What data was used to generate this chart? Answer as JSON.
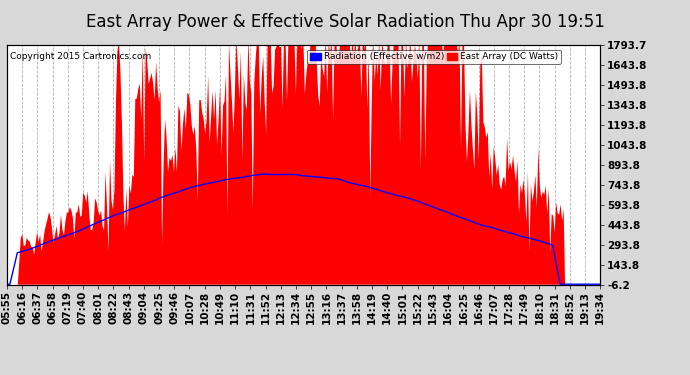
{
  "title": "East Array Power & Effective Solar Radiation Thu Apr 30 19:51",
  "copyright": "Copyright 2015 Cartronics.com",
  "legend_radiation": "Radiation (Effective w/m2)",
  "legend_array": "East Array (DC Watts)",
  "ylabel_right_ticks": [
    -6.2,
    143.8,
    293.8,
    443.8,
    593.8,
    743.8,
    893.8,
    1043.8,
    1193.8,
    1343.8,
    1493.8,
    1643.8,
    1793.7
  ],
  "ymin": -6.2,
  "ymax": 1793.7,
  "background_color": "#d8d8d8",
  "plot_bg_color": "#ffffff",
  "grid_color": "#aaaaaa",
  "red_fill_color": "#ff0000",
  "blue_line_color": "#0000ff",
  "title_fontsize": 12,
  "tick_fontsize": 7.5,
  "n_points": 400,
  "x_tick_labels": [
    "05:55",
    "06:16",
    "06:37",
    "06:58",
    "07:19",
    "07:40",
    "08:01",
    "08:22",
    "08:43",
    "09:04",
    "09:25",
    "09:46",
    "10:07",
    "10:28",
    "10:49",
    "11:10",
    "11:31",
    "11:52",
    "12:13",
    "12:34",
    "12:55",
    "13:16",
    "13:37",
    "13:58",
    "14:19",
    "14:40",
    "15:01",
    "15:22",
    "15:43",
    "16:04",
    "16:25",
    "16:46",
    "17:07",
    "17:28",
    "17:49",
    "18:10",
    "18:31",
    "18:52",
    "19:13",
    "19:34"
  ]
}
